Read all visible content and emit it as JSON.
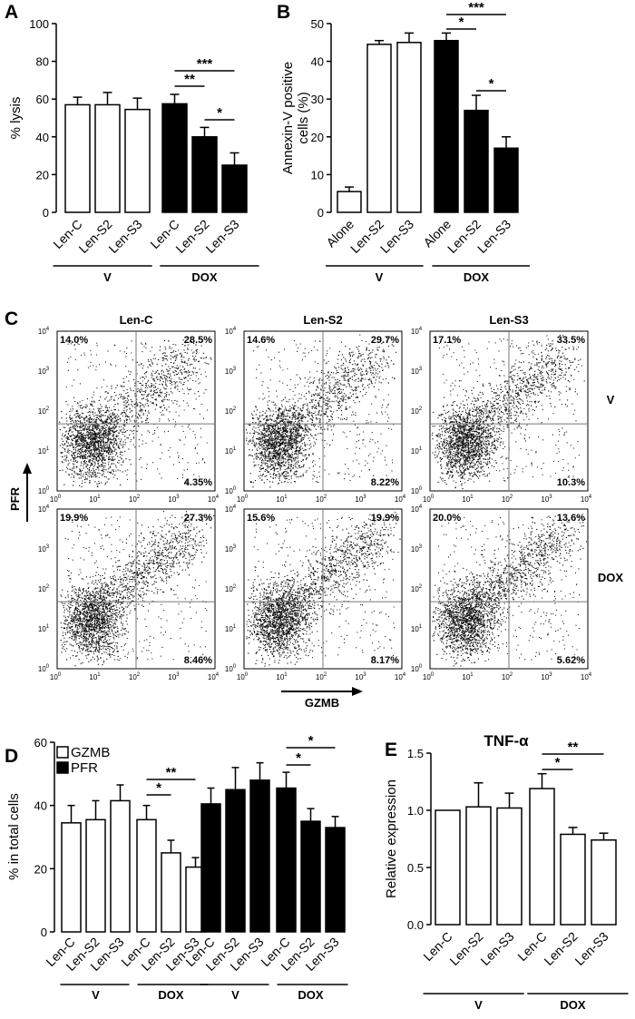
{
  "panels": {
    "A": {
      "label": "A",
      "ylabel": "% lysis",
      "ylim": [
        0,
        100
      ],
      "yticks": [
        0,
        20,
        40,
        60,
        80,
        100
      ],
      "categories": [
        "Len-C",
        "Len-S2",
        "Len-S3",
        "Len-C",
        "Len-S2",
        "Len-S3"
      ],
      "values": [
        57,
        57,
        54.5,
        57.5,
        40,
        25
      ],
      "errors": [
        4,
        6.5,
        6,
        5,
        5,
        6.5
      ],
      "fill": [
        "white",
        "white",
        "white",
        "black",
        "black",
        "black"
      ],
      "groups": [
        "V",
        "DOX"
      ],
      "sig": [
        {
          "from": 4,
          "to": 5,
          "label": "**"
        },
        {
          "from": 4,
          "to": 6,
          "label": "***"
        },
        {
          "from": 5,
          "to": 6,
          "label": "*"
        }
      ]
    },
    "B": {
      "label": "B",
      "ylabel_line1": "Annexin-V positive",
      "ylabel_line2": "cells (%)",
      "ylim": [
        0,
        50
      ],
      "yticks": [
        0,
        10,
        20,
        30,
        40,
        50
      ],
      "categories": [
        "Alone",
        "Len-S2",
        "Len-S3",
        "Alone",
        "Len-S2",
        "Len-S3"
      ],
      "values": [
        5.5,
        44.5,
        45,
        45.5,
        27,
        17
      ],
      "errors": [
        1.2,
        1,
        2.5,
        2,
        4,
        3
      ],
      "fill": [
        "white",
        "white",
        "white",
        "black",
        "black",
        "black"
      ],
      "groups": [
        "V",
        "DOX"
      ],
      "sig": [
        {
          "from": 4,
          "to": 5,
          "label": "*"
        },
        {
          "from": 4,
          "to": 6,
          "label": "***"
        },
        {
          "from": 5,
          "to": 6,
          "label": "*"
        }
      ]
    },
    "C": {
      "label": "C",
      "ylabel": "PFR",
      "xlabel": "GZMB",
      "column_titles": [
        "Len-C",
        "Len-S2",
        "Len-S3"
      ],
      "row_labels": [
        "V",
        "DOX"
      ],
      "axis_ticks": [
        "10",
        "10",
        "10",
        "10",
        "10"
      ],
      "tick_powers": [
        "0",
        "1",
        "2",
        "3",
        "4"
      ],
      "plots": [
        {
          "ul": "14.0%",
          "ur": "28.5%",
          "lr": "4.35%"
        },
        {
          "ul": "14.6%",
          "ur": "29.7%",
          "lr": "8.22%"
        },
        {
          "ul": "17.1%",
          "ur": "33.5%",
          "lr": "10.3%"
        },
        {
          "ul": "19.9%",
          "ur": "27.3%",
          "lr": "8.46%"
        },
        {
          "ul": "15.6%",
          "ur": "19.9%",
          "lr": "8.17%"
        },
        {
          "ul": "20.0%",
          "ur": "13.6%",
          "lr": "5.62%"
        }
      ]
    },
    "D": {
      "label": "D",
      "ylabel": "% in total cells",
      "ylim": [
        0,
        60
      ],
      "yticks": [
        0,
        20,
        40,
        60
      ],
      "legend": [
        {
          "name": "GZMB",
          "fill": "white"
        },
        {
          "name": "PFR",
          "fill": "black"
        }
      ],
      "categories": [
        "Len-C",
        "Len-S2",
        "Len-S3",
        "Len-C",
        "Len-S2",
        "Len-S3"
      ],
      "series": [
        {
          "name": "GZMB",
          "values": [
            34.5,
            35.5,
            41.5,
            35.5,
            25,
            20.5
          ],
          "errors": [
            5.5,
            6,
            5,
            4.5,
            4,
            3
          ]
        },
        {
          "name": "PFR",
          "values": [
            40.5,
            45,
            48,
            45.5,
            35,
            33
          ],
          "errors": [
            5,
            7,
            5.5,
            5,
            4,
            3.5
          ]
        }
      ],
      "groups": [
        "V",
        "DOX"
      ],
      "sig": [
        {
          "series": 0,
          "from": 4,
          "to": 5,
          "label": "*"
        },
        {
          "series": 0,
          "from": 4,
          "to": 6,
          "label": "**"
        },
        {
          "series": 1,
          "from": 4,
          "to": 5,
          "label": "*"
        },
        {
          "series": 1,
          "from": 4,
          "to": 6,
          "label": "*"
        }
      ]
    },
    "E": {
      "label": "E",
      "title": "TNF-α",
      "ylabel": "Relative expression",
      "ylim": [
        0,
        1.5
      ],
      "yticks": [
        "0.0",
        "0.5",
        "1.0",
        "1.5"
      ],
      "categories": [
        "Len-C",
        "Len-S2",
        "Len-S3",
        "Len-C",
        "Len-S2",
        "Len-S3"
      ],
      "values": [
        1.0,
        1.03,
        1.02,
        1.19,
        0.79,
        0.74
      ],
      "errors": [
        0,
        0.21,
        0.13,
        0.13,
        0.06,
        0.06
      ],
      "fill": [
        "white",
        "white",
        "white",
        "white",
        "white",
        "white"
      ],
      "groups": [
        "V",
        "DOX"
      ],
      "sig": [
        {
          "from": 4,
          "to": 5,
          "label": "*"
        },
        {
          "from": 4,
          "to": 6,
          "label": "**"
        }
      ]
    }
  }
}
